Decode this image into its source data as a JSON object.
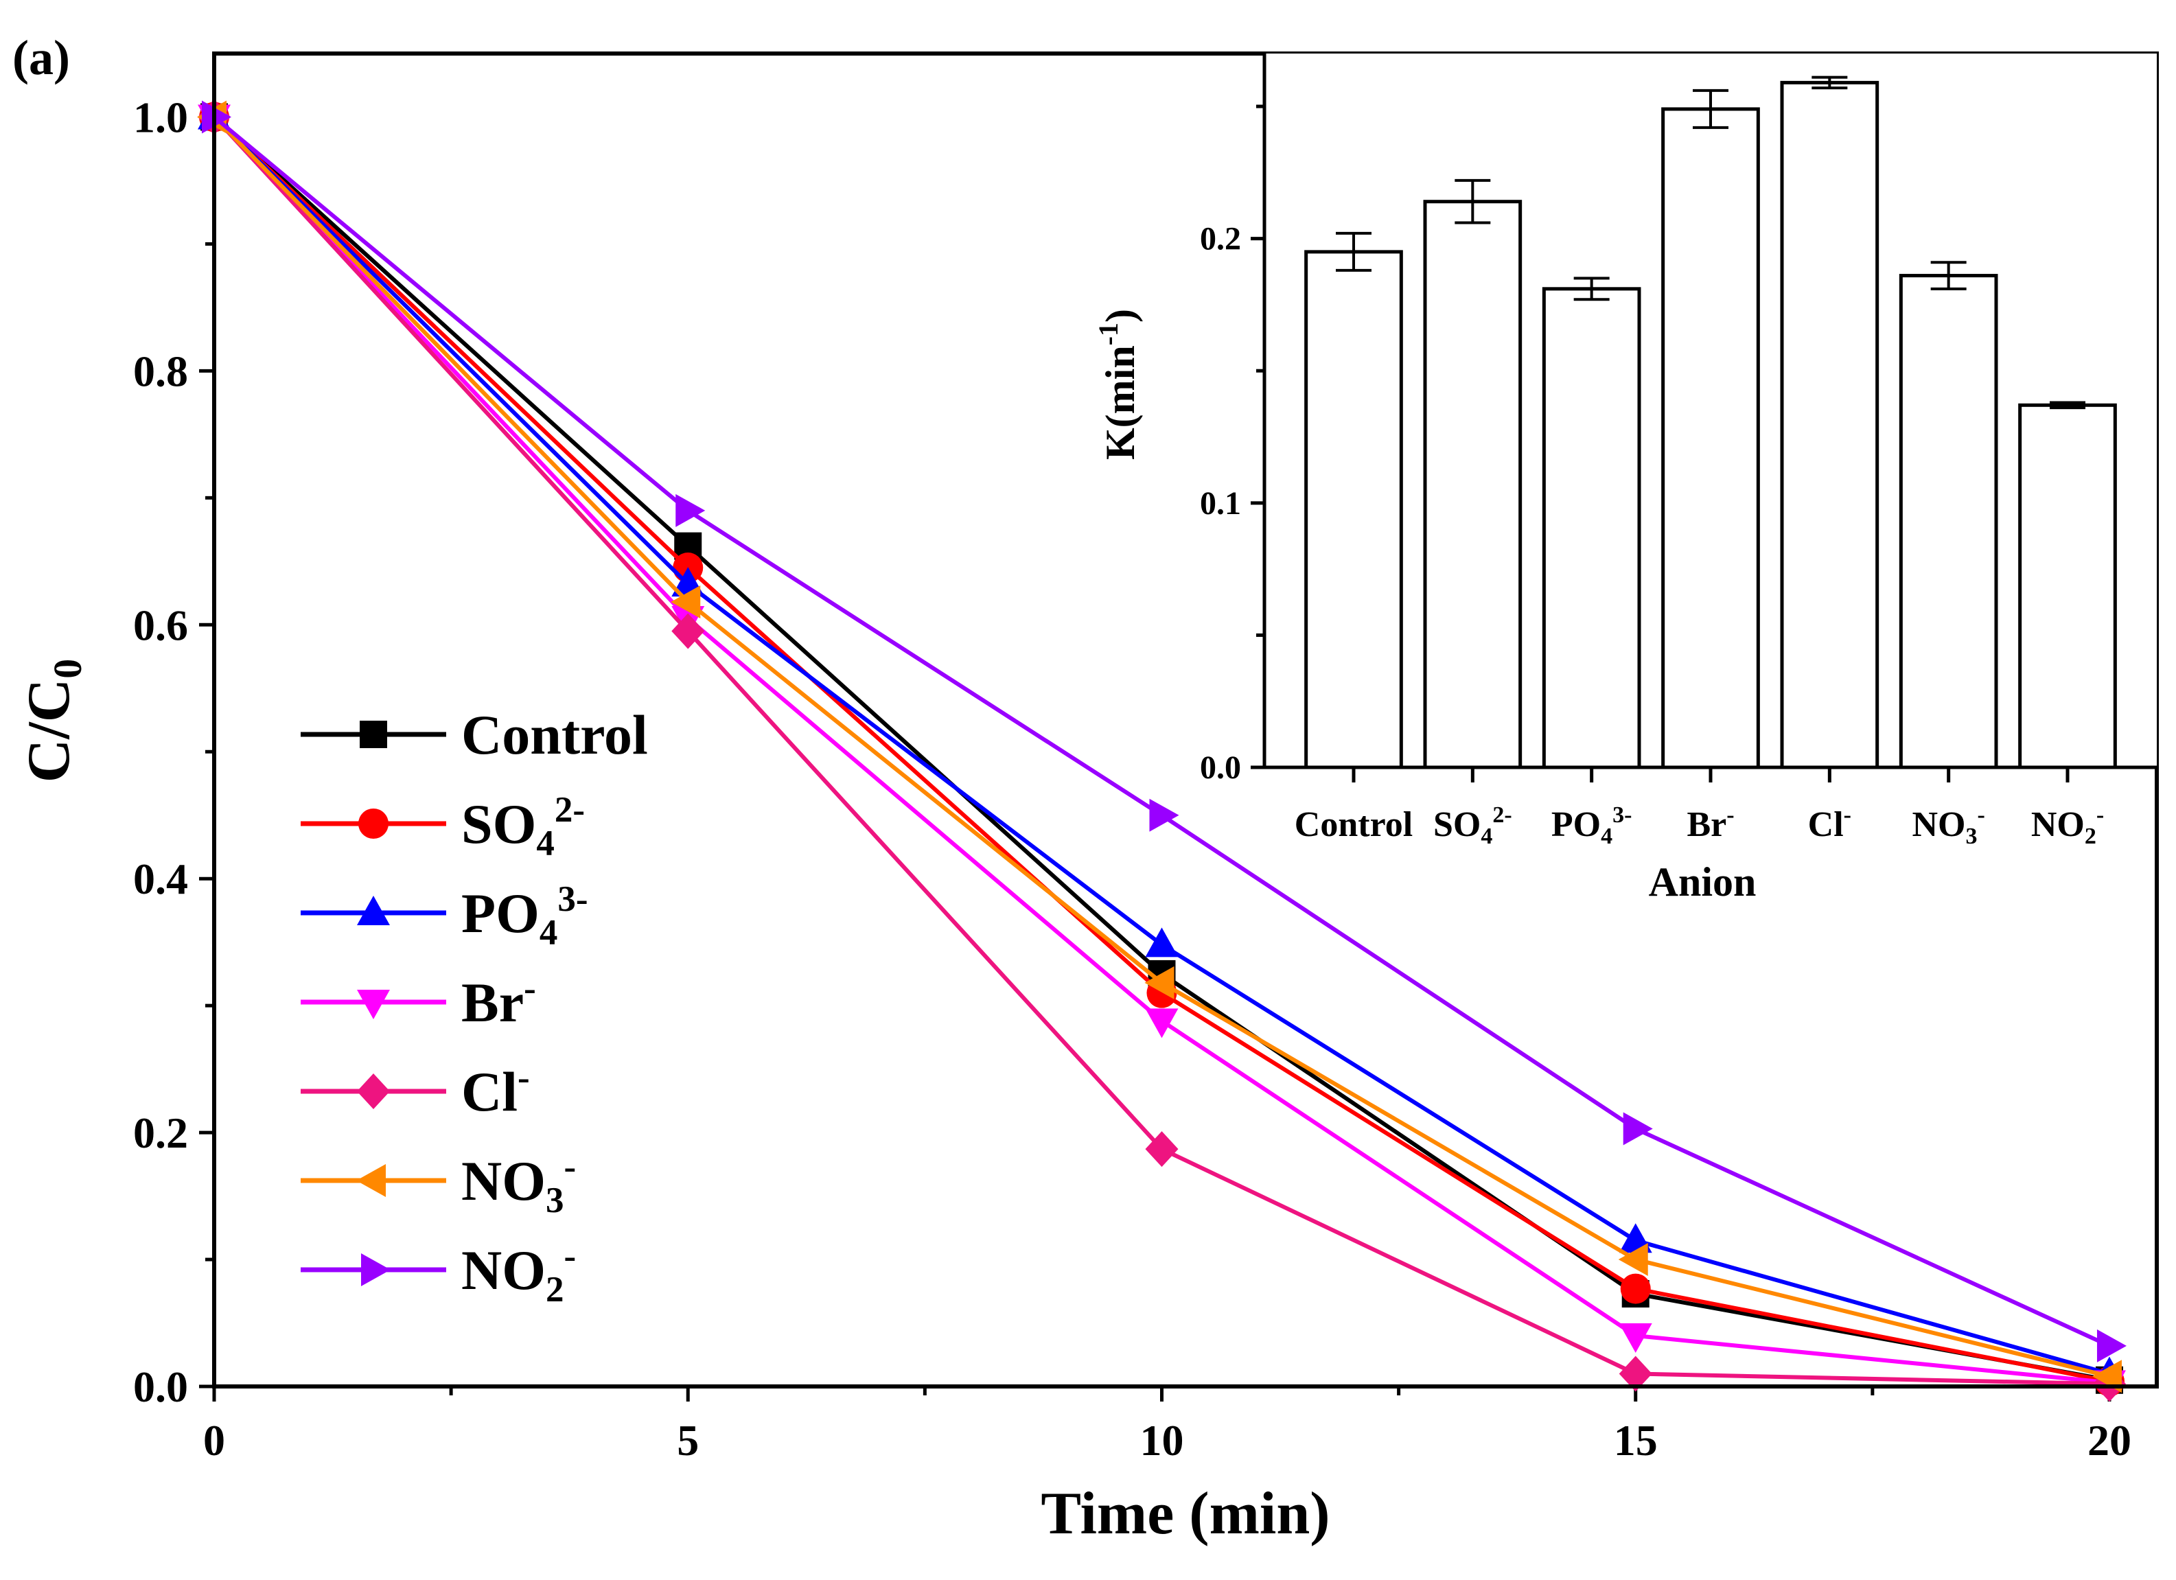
{
  "panel_label": "(a)",
  "chart_data": [
    {
      "type": "line",
      "title": "",
      "xlabel": "Time (min)",
      "ylabel": {
        "main": "C/C",
        "sub": "0"
      },
      "xlim": [
        0,
        20.5
      ],
      "ylim": [
        0,
        1.05
      ],
      "x": [
        0,
        5,
        10,
        15,
        20
      ],
      "xticks": [
        0,
        5,
        10,
        15,
        20
      ],
      "xtick_labels": [
        "0",
        "5",
        "10",
        "15",
        "20"
      ],
      "yticks": [
        0.0,
        0.2,
        0.4,
        0.6,
        0.8,
        1.0
      ],
      "ytick_labels": [
        "0.0",
        "0.2",
        "0.4",
        "0.6",
        "0.8",
        "1.0"
      ],
      "legend_position": "center-left",
      "series": [
        {
          "name": "Control",
          "label": {
            "main": "Control",
            "sub": "",
            "sup": ""
          },
          "color": "#000000",
          "marker": "square",
          "values": [
            1.0,
            0.662,
            0.325,
            0.073,
            0.005
          ]
        },
        {
          "name": "SO4 2-",
          "label": {
            "main": "SO",
            "sub": "4",
            "sup": "2-"
          },
          "color": "#ff0000",
          "marker": "circle",
          "values": [
            1.0,
            0.645,
            0.31,
            0.077,
            0.004
          ]
        },
        {
          "name": "PO4 3-",
          "label": {
            "main": "PO",
            "sub": "4",
            "sup": "3-"
          },
          "color": "#0000ff",
          "marker": "triangle-up",
          "values": [
            1.0,
            0.632,
            0.348,
            0.115,
            0.01
          ]
        },
        {
          "name": "Br-",
          "label": {
            "main": "Br",
            "sub": "",
            "sup": "-"
          },
          "color": "#ff00ff",
          "marker": "triangle-down",
          "values": [
            1.0,
            0.605,
            0.288,
            0.04,
            0.003
          ]
        },
        {
          "name": "Cl-",
          "label": {
            "main": "Cl",
            "sub": "",
            "sup": "-"
          },
          "color": "#ee1480",
          "marker": "diamond",
          "values": [
            1.0,
            0.595,
            0.187,
            0.01,
            0.002
          ]
        },
        {
          "name": "NO3 -",
          "label": {
            "main": "NO",
            "sub": "3",
            "sup": "-"
          },
          "color": "#ff8800",
          "marker": "triangle-left",
          "values": [
            1.0,
            0.618,
            0.318,
            0.1,
            0.008
          ]
        },
        {
          "name": "NO2 -",
          "label": {
            "main": "NO",
            "sub": "2",
            "sup": "-"
          },
          "color": "#9900ff",
          "marker": "triangle-right",
          "values": [
            1.0,
            0.69,
            0.45,
            0.203,
            0.032
          ]
        }
      ]
    },
    {
      "type": "bar",
      "title": "",
      "xlabel": "Anion",
      "ylabel": {
        "main": "K(min",
        "sup": "-1",
        "tail": ")"
      },
      "ylim": [
        0,
        0.27
      ],
      "yticks": [
        0.0,
        0.1,
        0.2
      ],
      "ytick_labels": [
        "0.0",
        "0.1",
        "0.2"
      ],
      "categories": [
        {
          "main": "Control",
          "sub": "",
          "sup": ""
        },
        {
          "main": "SO",
          "sub": "4",
          "sup": "2-"
        },
        {
          "main": "PO",
          "sub": "4",
          "sup": "3-"
        },
        {
          "main": "Br",
          "sub": "",
          "sup": "-"
        },
        {
          "main": "Cl",
          "sub": "",
          "sup": "-"
        },
        {
          "main": "NO",
          "sub": "3",
          "sup": "-"
        },
        {
          "main": "NO",
          "sub": "2",
          "sup": "-"
        }
      ],
      "values": [
        0.195,
        0.214,
        0.181,
        0.249,
        0.259,
        0.186,
        0.137
      ],
      "errors": [
        0.007,
        0.008,
        0.004,
        0.007,
        0.002,
        0.005,
        0.001
      ]
    }
  ]
}
